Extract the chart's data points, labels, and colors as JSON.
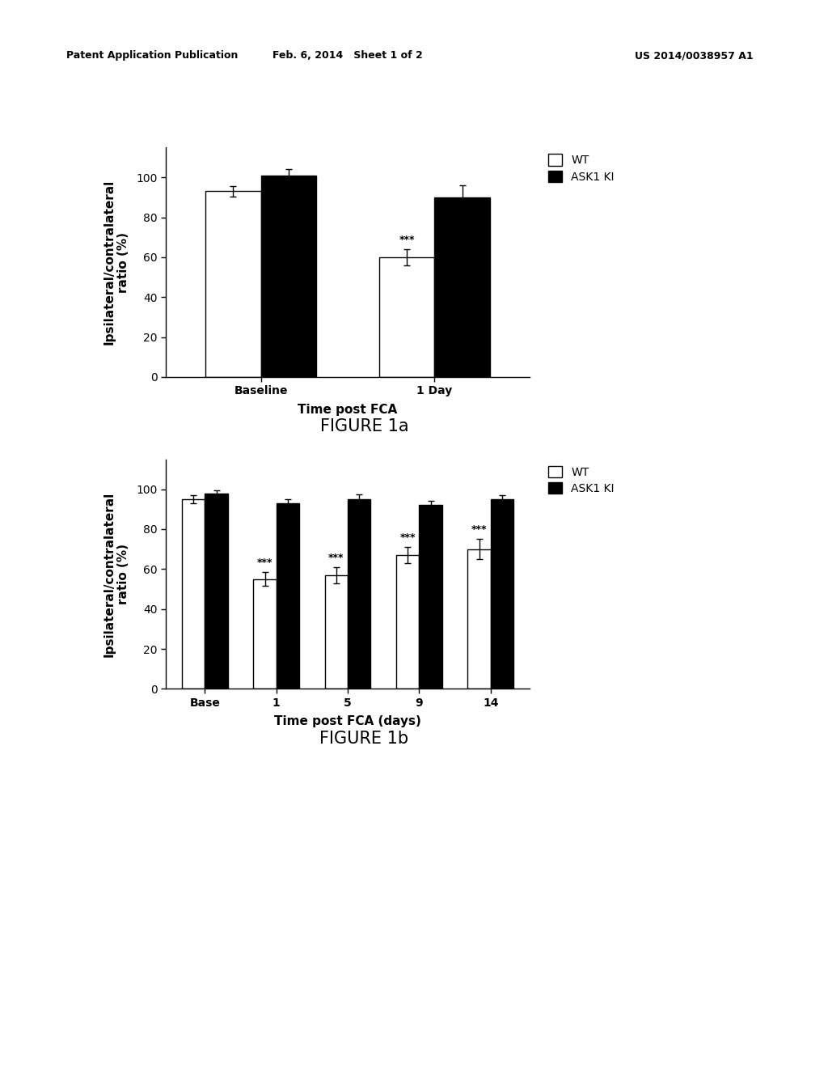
{
  "header_left": "Patent Application Publication",
  "header_mid": "Feb. 6, 2014   Sheet 1 of 2",
  "header_right": "US 2014/0038957 A1",
  "fig1a": {
    "title": "FIGURE 1a",
    "xlabel": "Time post FCA",
    "ylabel": "Ipsilateral/contralateral\nratio (%)",
    "categories": [
      "Baseline",
      "1 Day"
    ],
    "wt_values": [
      93,
      60
    ],
    "wt_errors": [
      2.5,
      4
    ],
    "ask1_values": [
      101,
      90
    ],
    "ask1_errors": [
      3,
      6
    ],
    "ylim": [
      0,
      115
    ],
    "yticks": [
      0,
      20,
      40,
      60,
      80,
      100
    ],
    "significance": [
      false,
      true
    ],
    "sig_label": "***"
  },
  "fig1b": {
    "title": "FIGURE 1b",
    "xlabel": "Time post FCA (days)",
    "ylabel": "Ipsilateral/contralateral\nratio (%)",
    "categories": [
      "Base",
      "1",
      "5",
      "9",
      "14"
    ],
    "wt_values": [
      95,
      55,
      57,
      67,
      70
    ],
    "wt_errors": [
      2,
      3.5,
      4,
      4,
      5
    ],
    "ask1_values": [
      98,
      93,
      95,
      92,
      95
    ],
    "ask1_errors": [
      1.5,
      2,
      2.5,
      2,
      2
    ],
    "ylim": [
      0,
      115
    ],
    "yticks": [
      0,
      20,
      40,
      60,
      80,
      100
    ],
    "significance": [
      false,
      true,
      true,
      true,
      true
    ],
    "sig_label": "***"
  },
  "legend_labels": [
    "WT",
    "ASK1 KI"
  ],
  "bar_colors": [
    "white",
    "black"
  ],
  "bar_edgecolor": "black",
  "background_color": "white",
  "header_fontsize": 9,
  "tick_fontsize": 10,
  "label_fontsize": 11,
  "caption_fontsize": 15,
  "bar_width": 0.32
}
